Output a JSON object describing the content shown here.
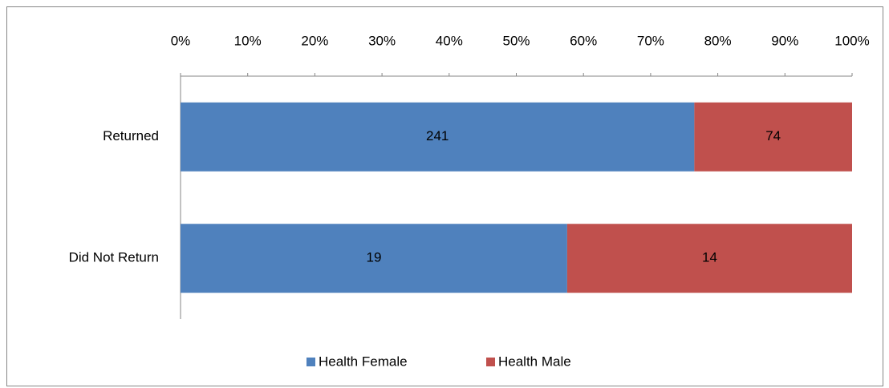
{
  "chart_data": {
    "type": "bar",
    "orientation": "horizontal",
    "stack": "percent",
    "categories": [
      "Returned",
      "Did Not Return"
    ],
    "series": [
      {
        "name": "Health Female",
        "color": "#4f81bd",
        "values": [
          241,
          19
        ]
      },
      {
        "name": "Health Male",
        "color": "#c0504d",
        "values": [
          74,
          14
        ]
      }
    ],
    "xlim": [
      0,
      100
    ],
    "xticks": [
      {
        "value": 0,
        "label": "0%"
      },
      {
        "value": 10,
        "label": "10%"
      },
      {
        "value": 20,
        "label": "20%"
      },
      {
        "value": 30,
        "label": "30%"
      },
      {
        "value": 40,
        "label": "40%"
      },
      {
        "value": 50,
        "label": "50%"
      },
      {
        "value": 60,
        "label": "60%"
      },
      {
        "value": 70,
        "label": "70%"
      },
      {
        "value": 80,
        "label": "80%"
      },
      {
        "value": 90,
        "label": "90%"
      },
      {
        "value": 100,
        "label": "100%"
      }
    ],
    "legend": "bottom",
    "grid": false
  }
}
